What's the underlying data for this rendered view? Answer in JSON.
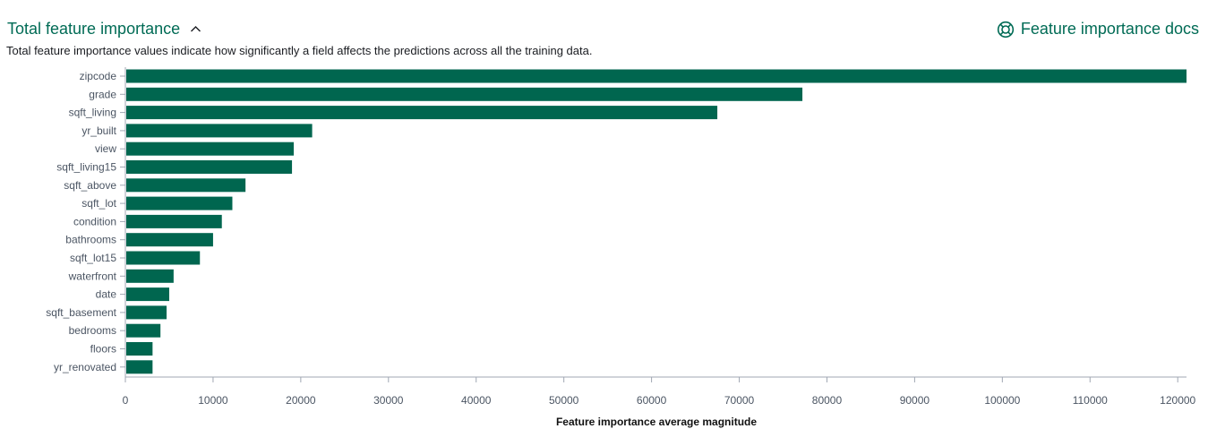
{
  "header": {
    "title": "Total feature importance",
    "docs_label": "Feature importance docs",
    "description": "Total feature importance values indicate how significantly a field affects the predictions across all the training data."
  },
  "colors": {
    "accent": "#006b55",
    "bar": "#00664f",
    "axis": "#a0a7b3"
  },
  "icons": {
    "collapse": "chevron-up-icon",
    "docs": "lifebuoy-icon"
  },
  "chart_data": {
    "type": "bar",
    "orientation": "horizontal",
    "categories": [
      "zipcode",
      "grade",
      "sqft_living",
      "yr_built",
      "view",
      "sqft_living15",
      "sqft_above",
      "sqft_lot",
      "condition",
      "bathrooms",
      "sqft_lot15",
      "waterfront",
      "date",
      "sqft_basement",
      "bedrooms",
      "floors",
      "yr_renovated"
    ],
    "values": [
      121000,
      77200,
      67500,
      21300,
      19200,
      19000,
      13700,
      12200,
      11000,
      10000,
      8500,
      5500,
      5000,
      4700,
      4000,
      3100,
      3100
    ],
    "xlabel": "Feature importance average magnitude",
    "ylabel": "",
    "xlim": [
      0,
      121000
    ],
    "xticks": [
      0,
      10000,
      20000,
      30000,
      40000,
      50000,
      60000,
      70000,
      80000,
      90000,
      100000,
      110000,
      120000
    ],
    "grid": false
  }
}
